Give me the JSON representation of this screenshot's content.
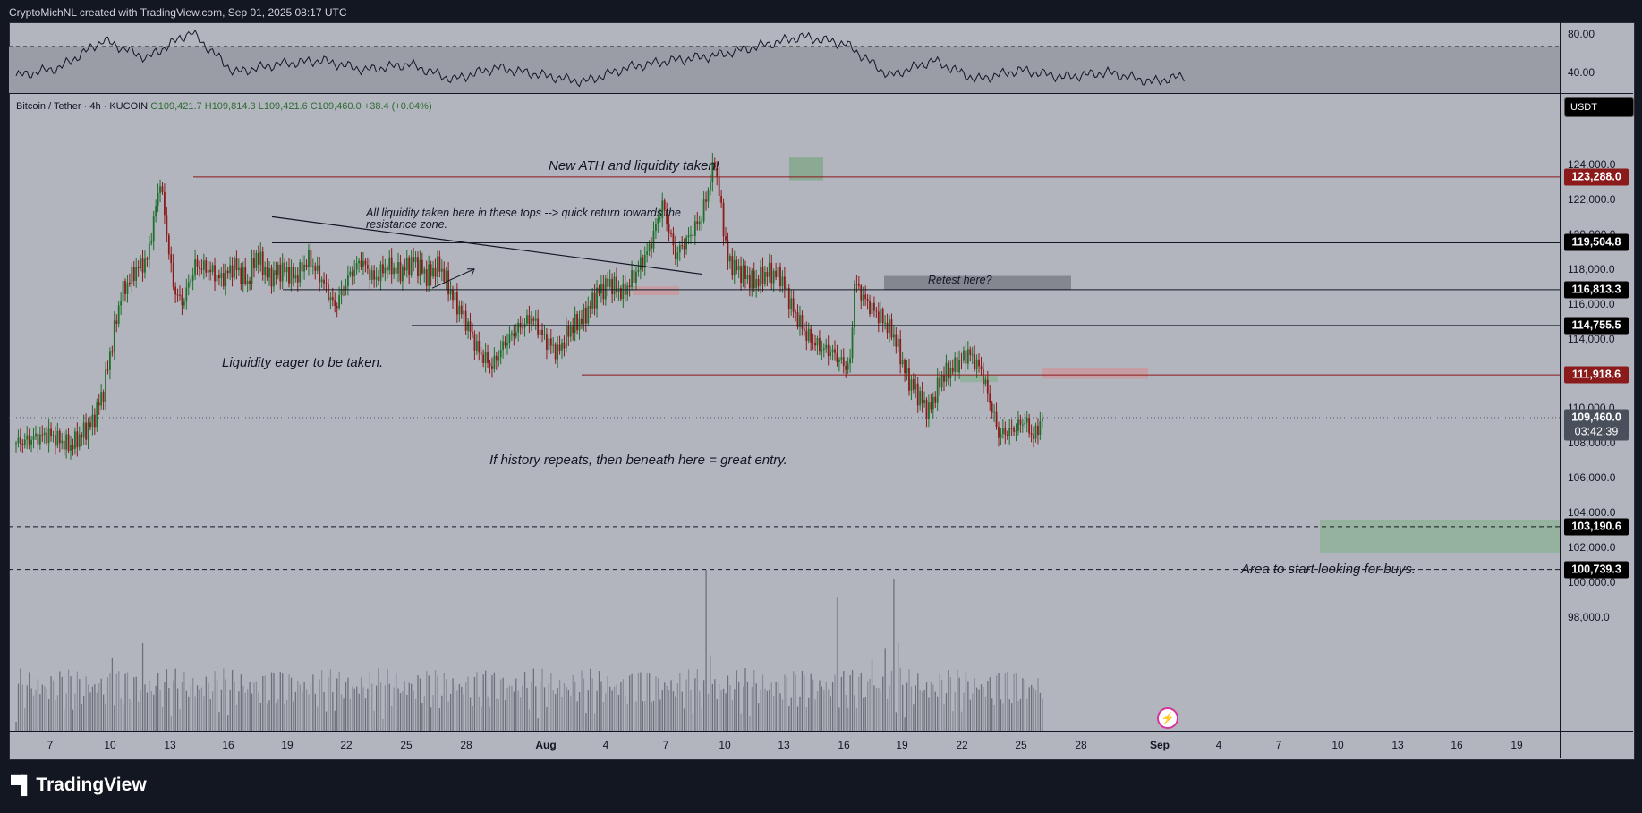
{
  "header": {
    "text": "CryptoMichNL created with TradingView.com, Sep 01, 2025 08:17 UTC"
  },
  "footer": {
    "logo": "TradingView"
  },
  "legend": {
    "symbol": "Bitcoin / Tether · 4h · KUCOIN",
    "open": "O109,421.7",
    "high": "H109,814.3",
    "low": "L109,421.6",
    "close": "C109,460.0",
    "change": "+38.4 (+0.04%)"
  },
  "currency_button": "USDT",
  "countdown": "03:42:39",
  "annotations": {
    "ath": "New ATH and liquidity taken!",
    "tops_line1": "All liquidity taken here in these tops --> quick return towards the",
    "tops_line2": "resistance zone.",
    "retest": "Retest here?",
    "eager": "Liquidity eager to be taken.",
    "history": "If history repeats, then beneath here = great entry.",
    "buys": "Area to start looking for buys."
  },
  "colors": {
    "bull": "#1e6f2a",
    "bear": "#8b1a1a",
    "frame_bg": "#b2b5be",
    "red_level": "#8b1a1a",
    "buy_zone": "#8fb29a"
  },
  "chart_data": [
    {
      "type": "line",
      "name_hint": "RSI pane",
      "y_ticks": [
        "80.00",
        "40.00"
      ],
      "ylim": [
        30,
        90
      ],
      "x_index": [
        0,
        20,
        40,
        60,
        80,
        100,
        120,
        140,
        160,
        180,
        200,
        220,
        240,
        260,
        280,
        300,
        320,
        340,
        360,
        380,
        400,
        420,
        440,
        460,
        480,
        500,
        520,
        535
      ],
      "values": [
        45,
        52,
        75,
        60,
        82,
        48,
        55,
        58,
        50,
        55,
        42,
        52,
        46,
        40,
        52,
        58,
        62,
        70,
        78,
        72,
        45,
        58,
        42,
        50,
        44,
        48,
        40,
        45
      ]
    },
    {
      "type": "candlestick",
      "title": "Bitcoin / Tether · 4h · KUCOIN",
      "ylim": [
        96500,
        131000
      ],
      "y_ticks": [
        "124,000.0",
        "122,000.0",
        "120,000.0",
        "118,000.0",
        "116,000.0",
        "114,000.0",
        "112,000.0",
        "110,000.0",
        "108,000.0",
        "106,000.0",
        "104,000.0",
        "102,000.0",
        "100,000.0",
        "98,000.0"
      ],
      "x_ticks": [
        "7",
        "10",
        "13",
        "16",
        "19",
        "22",
        "25",
        "28",
        "Aug",
        "4",
        "7",
        "10",
        "13",
        "16",
        "19",
        "22",
        "25",
        "28",
        "Sep",
        "4",
        "7",
        "10",
        "13",
        "16",
        "19"
      ],
      "price_levels": [
        {
          "value": 123288.0,
          "label": "123,288.0",
          "style": "red"
        },
        {
          "value": 119504.8,
          "label": "119,504.8",
          "style": "solid"
        },
        {
          "value": 116813.3,
          "label": "116,813.3",
          "style": "solid"
        },
        {
          "value": 114755.5,
          "label": "114,755.5",
          "style": "solid"
        },
        {
          "value": 111918.6,
          "label": "111,918.6",
          "style": "red"
        },
        {
          "value": 109460.0,
          "label": "109,460.0",
          "style": "last"
        },
        {
          "value": 103190.6,
          "label": "103,190.6",
          "style": "dashed"
        },
        {
          "value": 100739.3,
          "label": "100,739.3",
          "style": "dashed"
        }
      ],
      "anchors": [
        {
          "i": 0,
          "p": 108000
        },
        {
          "i": 15,
          "p": 108500
        },
        {
          "i": 25,
          "p": 107800
        },
        {
          "i": 35,
          "p": 109200
        },
        {
          "i": 40,
          "p": 111000
        },
        {
          "i": 48,
          "p": 116500
        },
        {
          "i": 55,
          "p": 118000
        },
        {
          "i": 60,
          "p": 118500
        },
        {
          "i": 66,
          "p": 123100
        },
        {
          "i": 72,
          "p": 117000
        },
        {
          "i": 76,
          "p": 116000
        },
        {
          "i": 82,
          "p": 118200
        },
        {
          "i": 88,
          "p": 118000
        },
        {
          "i": 94,
          "p": 117400
        },
        {
          "i": 100,
          "p": 118200
        },
        {
          "i": 106,
          "p": 117200
        },
        {
          "i": 110,
          "p": 118800
        },
        {
          "i": 116,
          "p": 117500
        },
        {
          "i": 122,
          "p": 118000
        },
        {
          "i": 128,
          "p": 117500
        },
        {
          "i": 134,
          "p": 118600
        },
        {
          "i": 140,
          "p": 117400
        },
        {
          "i": 146,
          "p": 115800
        },
        {
          "i": 152,
          "p": 117500
        },
        {
          "i": 158,
          "p": 118500
        },
        {
          "i": 164,
          "p": 117400
        },
        {
          "i": 170,
          "p": 118200
        },
        {
          "i": 176,
          "p": 117800
        },
        {
          "i": 182,
          "p": 118500
        },
        {
          "i": 188,
          "p": 117600
        },
        {
          "i": 194,
          "p": 118200
        },
        {
          "i": 200,
          "p": 116400
        },
        {
          "i": 206,
          "p": 115000
        },
        {
          "i": 212,
          "p": 113200
        },
        {
          "i": 218,
          "p": 112400
        },
        {
          "i": 224,
          "p": 113800
        },
        {
          "i": 230,
          "p": 114600
        },
        {
          "i": 236,
          "p": 115200
        },
        {
          "i": 242,
          "p": 114000
        },
        {
          "i": 248,
          "p": 113200
        },
        {
          "i": 254,
          "p": 114600
        },
        {
          "i": 260,
          "p": 115200
        },
        {
          "i": 266,
          "p": 116600
        },
        {
          "i": 272,
          "p": 117200
        },
        {
          "i": 278,
          "p": 116600
        },
        {
          "i": 284,
          "p": 117800
        },
        {
          "i": 290,
          "p": 119200
        },
        {
          "i": 296,
          "p": 121700
        },
        {
          "i": 302,
          "p": 118800
        },
        {
          "i": 308,
          "p": 119800
        },
        {
          "i": 314,
          "p": 121000
        },
        {
          "i": 320,
          "p": 124200
        },
        {
          "i": 326,
          "p": 118500
        },
        {
          "i": 332,
          "p": 117800
        },
        {
          "i": 338,
          "p": 117200
        },
        {
          "i": 344,
          "p": 117800
        },
        {
          "i": 350,
          "p": 117600
        },
        {
          "i": 356,
          "p": 115600
        },
        {
          "i": 362,
          "p": 114200
        },
        {
          "i": 368,
          "p": 113500
        },
        {
          "i": 374,
          "p": 113200
        },
        {
          "i": 380,
          "p": 112400
        },
        {
          "i": 382,
          "p": 112600
        },
        {
          "i": 384,
          "p": 117200
        },
        {
          "i": 390,
          "p": 116000
        },
        {
          "i": 396,
          "p": 115200
        },
        {
          "i": 402,
          "p": 114200
        },
        {
          "i": 408,
          "p": 111800
        },
        {
          "i": 414,
          "p": 110600
        },
        {
          "i": 418,
          "p": 109800
        },
        {
          "i": 424,
          "p": 111800
        },
        {
          "i": 430,
          "p": 112400
        },
        {
          "i": 436,
          "p": 113200
        },
        {
          "i": 442,
          "p": 112200
        },
        {
          "i": 446,
          "p": 110400
        },
        {
          "i": 450,
          "p": 108500
        },
        {
          "i": 456,
          "p": 108700
        },
        {
          "i": 462,
          "p": 109300
        },
        {
          "i": 466,
          "p": 108300
        },
        {
          "i": 470,
          "p": 109460
        }
      ],
      "volume": "relative bars, peaks near 14, 22 and 26 Aug"
    }
  ]
}
